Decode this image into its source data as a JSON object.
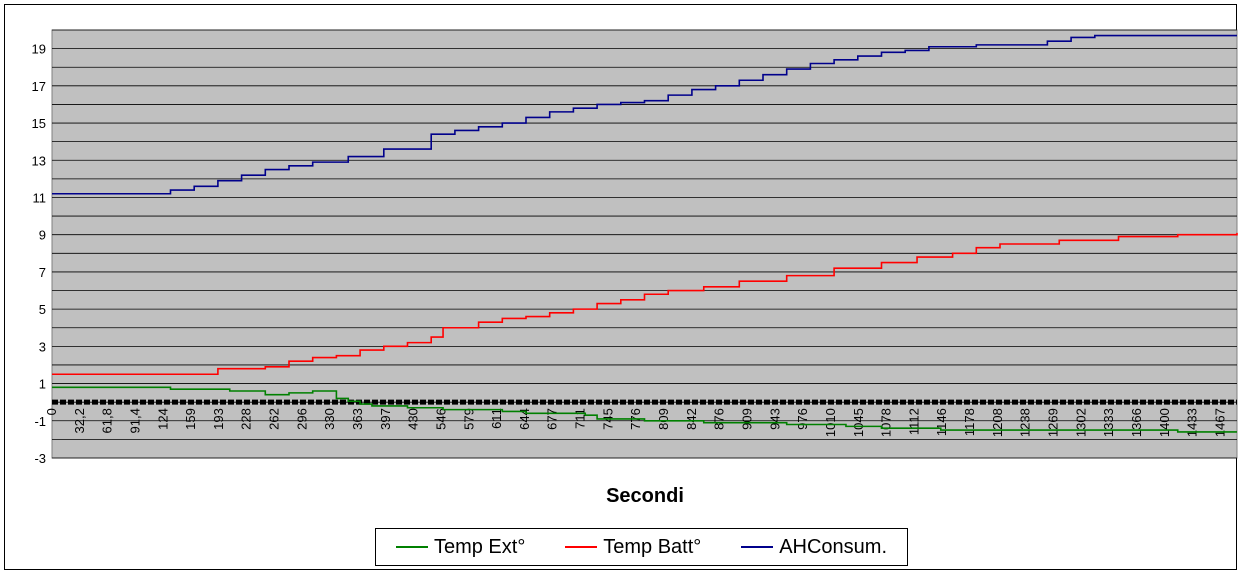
{
  "chart_data": {
    "type": "line",
    "title": "",
    "xlabel": "Secondi",
    "ylabel": "",
    "ylim": [
      -3,
      20
    ],
    "y_ticks": [
      -3,
      -1,
      1,
      3,
      5,
      7,
      9,
      11,
      13,
      15,
      17,
      19
    ],
    "grid": true,
    "legend_position": "bottom",
    "x_tick_labels": [
      "0",
      "32,2",
      "61,8",
      "91,4",
      "124",
      "159",
      "193",
      "228",
      "262",
      "296",
      "330",
      "363",
      "397",
      "430",
      "546",
      "579",
      "611",
      "644",
      "677",
      "711",
      "745",
      "776",
      "809",
      "842",
      "876",
      "909",
      "943",
      "976",
      "1010",
      "1045",
      "1078",
      "1112",
      "1146",
      "1178",
      "1208",
      "1238",
      "1269",
      "1302",
      "1333",
      "1366",
      "1400",
      "1433",
      "1467"
    ],
    "series": [
      {
        "name": "Temp Ext°",
        "color": "#008000",
        "points": [
          [
            0,
            0.8
          ],
          [
            5,
            0.8
          ],
          [
            10,
            0.7
          ],
          [
            15,
            0.6
          ],
          [
            18,
            0.4
          ],
          [
            20,
            0.5
          ],
          [
            22,
            0.6
          ],
          [
            24,
            0.2
          ],
          [
            25,
            0.05
          ],
          [
            26,
            -0.1
          ],
          [
            27,
            -0.2
          ],
          [
            30,
            -0.3
          ],
          [
            33,
            -0.4
          ],
          [
            38,
            -0.5
          ],
          [
            40,
            -0.6
          ],
          [
            45,
            -0.7
          ],
          [
            46,
            -0.9
          ],
          [
            50,
            -1.0
          ],
          [
            55,
            -1.1
          ],
          [
            60,
            -1.1
          ],
          [
            62,
            -1.2
          ],
          [
            67,
            -1.3
          ],
          [
            70,
            -1.4
          ],
          [
            75,
            -1.5
          ],
          [
            80,
            -1.5
          ],
          [
            85,
            -1.5
          ],
          [
            90,
            -1.5
          ],
          [
            95,
            -1.6
          ],
          [
            100,
            -1.6
          ]
        ]
      },
      {
        "name": "Temp Batt°",
        "color": "#ff0000",
        "points": [
          [
            0,
            1.5
          ],
          [
            5,
            1.5
          ],
          [
            10,
            1.5
          ],
          [
            12,
            1.5
          ],
          [
            14,
            1.8
          ],
          [
            18,
            1.9
          ],
          [
            20,
            2.2
          ],
          [
            22,
            2.4
          ],
          [
            24,
            2.5
          ],
          [
            26,
            2.8
          ],
          [
            28,
            3.0
          ],
          [
            30,
            3.2
          ],
          [
            32,
            3.5
          ],
          [
            33,
            4.0
          ],
          [
            36,
            4.3
          ],
          [
            38,
            4.5
          ],
          [
            40,
            4.6
          ],
          [
            42,
            4.8
          ],
          [
            44,
            5.0
          ],
          [
            46,
            5.3
          ],
          [
            48,
            5.5
          ],
          [
            50,
            5.8
          ],
          [
            52,
            6.0
          ],
          [
            55,
            6.2
          ],
          [
            58,
            6.5
          ],
          [
            62,
            6.8
          ],
          [
            66,
            7.2
          ],
          [
            70,
            7.5
          ],
          [
            73,
            7.8
          ],
          [
            76,
            8.0
          ],
          [
            78,
            8.3
          ],
          [
            80,
            8.5
          ],
          [
            85,
            8.7
          ],
          [
            90,
            8.9
          ],
          [
            95,
            9.0
          ],
          [
            100,
            9.1
          ]
        ]
      },
      {
        "name": "AHConsum.",
        "color": "#00008b",
        "points": [
          [
            0,
            11.2
          ],
          [
            2,
            11.2
          ],
          [
            5,
            11.2
          ],
          [
            9,
            11.2
          ],
          [
            10,
            11.4
          ],
          [
            12,
            11.6
          ],
          [
            14,
            11.9
          ],
          [
            16,
            12.2
          ],
          [
            18,
            12.5
          ],
          [
            20,
            12.7
          ],
          [
            22,
            12.9
          ],
          [
            25,
            13.2
          ],
          [
            28,
            13.6
          ],
          [
            31,
            13.6
          ],
          [
            32,
            14.4
          ],
          [
            34,
            14.6
          ],
          [
            36,
            14.8
          ],
          [
            38,
            15.0
          ],
          [
            40,
            15.3
          ],
          [
            42,
            15.6
          ],
          [
            44,
            15.8
          ],
          [
            46,
            16.0
          ],
          [
            48,
            16.1
          ],
          [
            50,
            16.2
          ],
          [
            52,
            16.5
          ],
          [
            54,
            16.8
          ],
          [
            56,
            17.0
          ],
          [
            58,
            17.3
          ],
          [
            60,
            17.6
          ],
          [
            62,
            17.9
          ],
          [
            64,
            18.2
          ],
          [
            66,
            18.4
          ],
          [
            68,
            18.6
          ],
          [
            70,
            18.8
          ],
          [
            72,
            18.9
          ],
          [
            74,
            19.1
          ],
          [
            78,
            19.2
          ],
          [
            82,
            19.2
          ],
          [
            84,
            19.4
          ],
          [
            86,
            19.6
          ],
          [
            88,
            19.7
          ],
          [
            94,
            19.7
          ],
          [
            100,
            19.7
          ]
        ]
      }
    ]
  }
}
